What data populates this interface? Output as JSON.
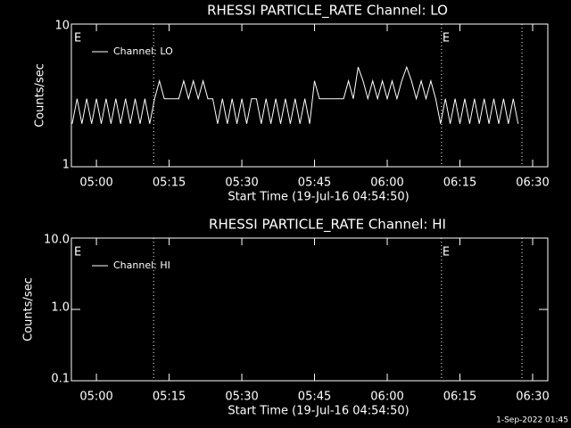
{
  "footer": "1-Sep-2022 01:45",
  "chart_data": [
    {
      "type": "line",
      "title": "RHESSI PARTICLE_RATE Channel: LO",
      "xlabel": "Start Time (19-Jul-16 04:54:50)",
      "ylabel": "Counts/sec",
      "ylog": true,
      "ylim": [
        1,
        10
      ],
      "yticks": [
        1,
        10
      ],
      "xlim": [
        294.83,
        393.13
      ],
      "xticks": [
        {
          "value": 300,
          "label": "05:00"
        },
        {
          "value": 315,
          "label": "05:15"
        },
        {
          "value": 330,
          "label": "05:30"
        },
        {
          "value": 345,
          "label": "05:45"
        },
        {
          "value": 360,
          "label": "06:00"
        },
        {
          "value": 375,
          "label": "06:15"
        },
        {
          "value": 390,
          "label": "06:30"
        }
      ],
      "vlines": [
        311.8,
        371.2,
        387.8
      ],
      "annotations": [
        {
          "text": "E",
          "x": 295.2
        },
        {
          "text": "E",
          "x": 371.2
        }
      ],
      "legend": "upper left",
      "series": [
        {
          "name": "Channel: LO",
          "color": "#ffffff",
          "x": [
            295,
            296,
            297,
            298,
            299,
            300,
            301,
            302,
            303,
            304,
            305,
            306,
            307,
            308,
            309,
            310,
            311,
            312,
            313,
            314,
            315,
            316,
            317,
            318,
            319,
            320,
            321,
            322,
            323,
            324,
            325,
            326,
            327,
            328,
            329,
            330,
            331,
            332,
            333,
            334,
            335,
            336,
            337,
            338,
            339,
            340,
            341,
            342,
            343,
            344,
            345,
            346,
            347,
            348,
            349,
            350,
            351,
            352,
            353,
            354,
            355,
            356,
            357,
            358,
            359,
            360,
            361,
            362,
            363,
            364,
            365,
            366,
            367,
            368,
            369,
            370,
            371,
            372,
            373,
            374,
            375,
            376,
            377,
            378,
            379,
            380,
            381,
            382,
            383,
            384,
            385,
            386,
            387
          ],
          "values": [
            2,
            3,
            2,
            3,
            2,
            3,
            2,
            3,
            2,
            3,
            2,
            3,
            2,
            3,
            2,
            3,
            2,
            3,
            4,
            3,
            3,
            3,
            3,
            4,
            3,
            4,
            3,
            4,
            3,
            3,
            2,
            3,
            2,
            3,
            2,
            3,
            2,
            3,
            3,
            2,
            3,
            2,
            3,
            2,
            3,
            2,
            3,
            2,
            3,
            2,
            4,
            3,
            3,
            3,
            3,
            3,
            3,
            4,
            3,
            5,
            4,
            3,
            4,
            3,
            4,
            3,
            4,
            3,
            4,
            5,
            4,
            3,
            4,
            3,
            4,
            3,
            2,
            3,
            2,
            3,
            2,
            3,
            2,
            3,
            2,
            3,
            2,
            3,
            2,
            3,
            2,
            3,
            2
          ]
        }
      ]
    },
    {
      "type": "line",
      "title": "RHESSI PARTICLE_RATE Channel: HI",
      "xlabel": "Start Time (19-Jul-16 04:54:50)",
      "ylabel": "Counts/sec",
      "ylog": true,
      "ylim": [
        0.1,
        10
      ],
      "yticks": [
        0.1,
        {
          "value": 1,
          "label": "1.0"
        },
        {
          "value": 10,
          "label": "10.0"
        }
      ],
      "xlim": [
        294.83,
        393.13
      ],
      "xticks": [
        {
          "value": 300,
          "label": "05:00"
        },
        {
          "value": 315,
          "label": "05:15"
        },
        {
          "value": 330,
          "label": "05:30"
        },
        {
          "value": 345,
          "label": "05:45"
        },
        {
          "value": 360,
          "label": "06:00"
        },
        {
          "value": 375,
          "label": "06:15"
        },
        {
          "value": 390,
          "label": "06:30"
        }
      ],
      "vlines": [
        311.8,
        371.2,
        387.8
      ],
      "annotations": [
        {
          "text": "E",
          "x": 295.2
        },
        {
          "text": "E",
          "x": 371.2
        }
      ],
      "legend": "upper left",
      "series": [
        {
          "name": "Channel: HI",
          "color": "#ffffff",
          "x": [],
          "values": []
        }
      ]
    }
  ]
}
